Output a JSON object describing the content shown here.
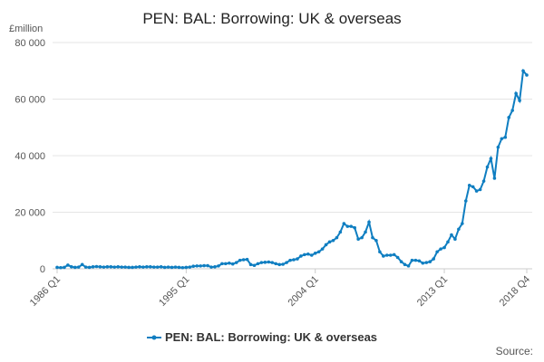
{
  "chart_data": {
    "type": "line",
    "title": "PEN: BAL: Borrowing: UK & overseas",
    "y_label": "£million",
    "source": "Source:",
    "categories": [
      "1986 Q1",
      null,
      null,
      null,
      null,
      null,
      null,
      null,
      null,
      null,
      null,
      null,
      null,
      null,
      null,
      null,
      null,
      null,
      null,
      null,
      null,
      null,
      null,
      null,
      null,
      null,
      null,
      null,
      null,
      null,
      null,
      null,
      null,
      null,
      null,
      null,
      "1995 Q1",
      null,
      null,
      null,
      null,
      null,
      null,
      null,
      null,
      null,
      null,
      null,
      null,
      null,
      null,
      null,
      null,
      null,
      null,
      null,
      null,
      null,
      null,
      null,
      null,
      null,
      null,
      null,
      null,
      null,
      null,
      null,
      null,
      null,
      null,
      null,
      "2004 Q1",
      null,
      null,
      null,
      null,
      null,
      null,
      null,
      null,
      null,
      null,
      null,
      null,
      null,
      null,
      null,
      null,
      null,
      null,
      null,
      null,
      null,
      null,
      null,
      null,
      null,
      null,
      null,
      null,
      null,
      null,
      null,
      null,
      null,
      null,
      null,
      "2013 Q1",
      null,
      null,
      null,
      null,
      null,
      null,
      null,
      null,
      null,
      null,
      null,
      null,
      null,
      null,
      null,
      null,
      null,
      null,
      null,
      null,
      null,
      null,
      "2018 Q4"
    ],
    "series": [
      {
        "name": "PEN: BAL: Borrowing: UK & overseas",
        "color": "#0f7ec1",
        "values": [
          500,
          400,
          500,
          1300,
          700,
          500,
          600,
          1500,
          600,
          500,
          700,
          800,
          700,
          600,
          700,
          700,
          600,
          700,
          600,
          600,
          500,
          500,
          600,
          700,
          600,
          700,
          700,
          600,
          600,
          700,
          500,
          600,
          500,
          600,
          500,
          400,
          500,
          600,
          900,
          1000,
          1000,
          1100,
          1100,
          600,
          700,
          1000,
          1800,
          1800,
          2000,
          1700,
          2200,
          3000,
          3200,
          3300,
          1500,
          1200,
          1800,
          2200,
          2300,
          2400,
          2200,
          1800,
          1500,
          1600,
          2200,
          3000,
          3200,
          3500,
          4500,
          5000,
          5200,
          4800,
          5500,
          6000,
          7000,
          8500,
          9500,
          10000,
          11000,
          13000,
          16000,
          15000,
          15000,
          14500,
          10500,
          11000,
          13000,
          16500,
          11000,
          10000,
          6000,
          4500,
          4800,
          4800,
          5000,
          4000,
          2500,
          1500,
          1000,
          3000,
          3000,
          2800,
          2000,
          2200,
          2500,
          3500,
          6000,
          7000,
          7500,
          9500,
          12000,
          10500,
          14000,
          16000,
          24000,
          29500,
          29000,
          27500,
          28000,
          31000,
          36000,
          39000,
          32000,
          43000,
          46000,
          46500,
          53500,
          56000,
          62000,
          59500,
          70000,
          68500
        ]
      }
    ],
    "ylim": [
      0,
      80000
    ],
    "yticks": [
      0,
      {
        "value": 20000,
        "label": "20 000"
      },
      {
        "value": 40000,
        "label": "40 000"
      },
      {
        "value": 60000,
        "label": "60 000"
      },
      {
        "value": 80000,
        "label": "80 000"
      }
    ],
    "grid": true
  }
}
